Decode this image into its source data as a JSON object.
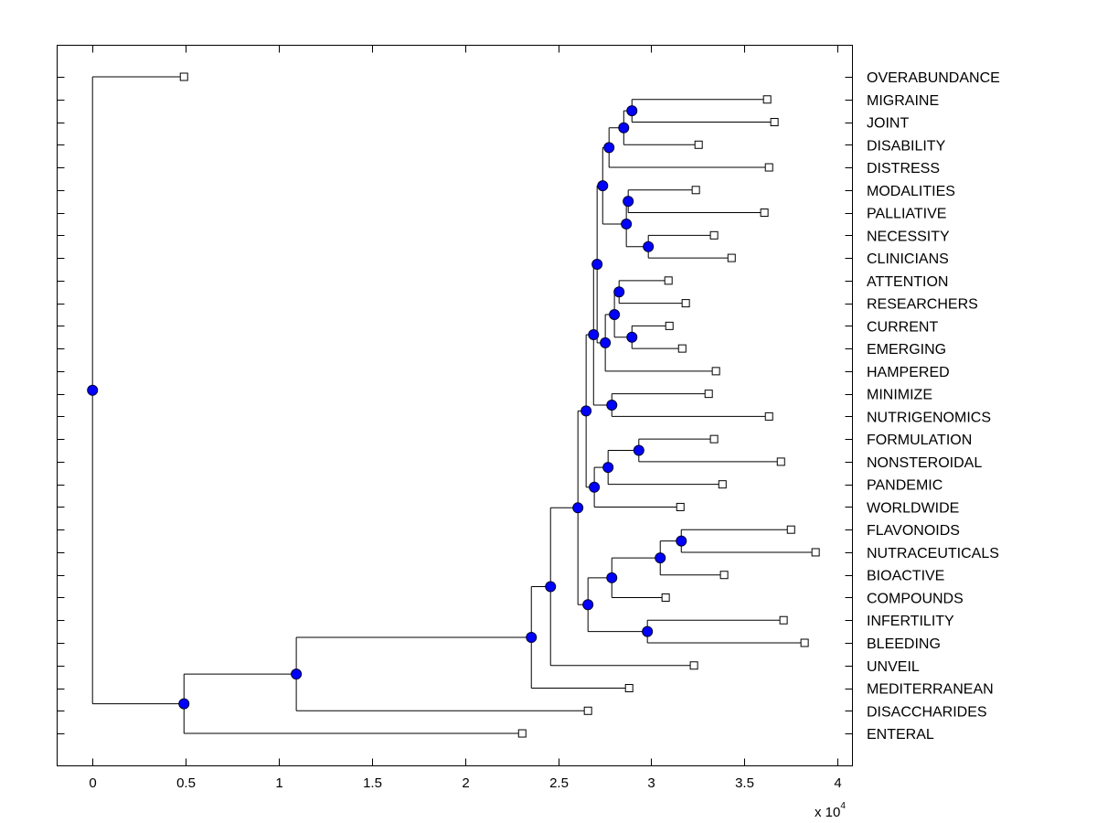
{
  "chart_data": {
    "type": "dendrogram",
    "orientation": "horizontal",
    "xlim": [
      -0.19,
      4.08
    ],
    "x_multiplier_label": "x 10",
    "x_multiplier_exponent": "4",
    "x_ticks": [
      0,
      0.5,
      1,
      1.5,
      2,
      2.5,
      3,
      3.5,
      4
    ],
    "x_tick_labels": [
      "0",
      "0.5",
      "1",
      "1.5",
      "2",
      "2.5",
      "3",
      "3.5",
      "4"
    ],
    "node_color": "#0000ff",
    "leaf_color": "#ffffff",
    "line_color": "#000000",
    "tree": {
      "h": 0,
      "c": [
        {
          "label": "OVERABUNDANCE",
          "h": 0.491
        },
        {
          "h": 0.491,
          "c": [
            {
              "h": 1.094,
              "c": [
                {
                  "h": 2.356,
                  "c": [
                    {
                      "h": 2.459,
                      "c": [
                        {
                          "h": 2.606,
                          "c": [
                            {
                              "h": 2.65,
                              "c": [
                                {
                                  "h": 2.69,
                                  "c": [
                                    {
                                      "h": 2.709,
                                      "c": [
                                        {
                                          "h": 2.739,
                                          "c": [
                                            {
                                              "h": 2.773,
                                              "c": [
                                                {
                                                  "h": 2.852,
                                                  "c": [
                                                    {
                                                      "h": 2.896,
                                                      "c": [
                                                        {
                                                          "label": "MIGRAINE",
                                                          "h": 3.622
                                                        },
                                                        {
                                                          "label": "JOINT",
                                                          "h": 3.661
                                                        }
                                                      ]
                                                    },
                                                    {
                                                      "label": "DISABILITY",
                                                      "h": 3.254
                                                    }
                                                  ]
                                                },
                                                {
                                                  "label": "DISTRESS",
                                                  "h": 3.632
                                                }
                                              ]
                                            },
                                            {
                                              "h": 2.866,
                                              "c": [
                                                {
                                                  "h": 2.876,
                                                  "c": [
                                                    {
                                                      "label": "MODALITIES",
                                                      "h": 3.239
                                                    },
                                                    {
                                                      "label": "PALLIATIVE",
                                                      "h": 3.607
                                                    }
                                                  ]
                                                },
                                                {
                                                  "h": 2.984,
                                                  "c": [
                                                    {
                                                      "label": "NECESSITY",
                                                      "h": 3.337
                                                    },
                                                    {
                                                      "label": "CLINICIANS",
                                                      "h": 3.431
                                                    }
                                                  ]
                                                }
                                              ]
                                            }
                                          ]
                                        },
                                        {
                                          "h": 2.753,
                                          "c": [
                                            {
                                              "h": 2.802,
                                              "c": [
                                                {
                                                  "h": 2.827,
                                                  "c": [
                                                    {
                                                      "label": "ATTENTION",
                                                      "h": 3.092
                                                    },
                                                    {
                                                      "label": "RESEARCHERS",
                                                      "h": 3.185
                                                    }
                                                  ]
                                                },
                                                {
                                                  "h": 2.896,
                                                  "c": [
                                                    {
                                                      "label": "CURRENT",
                                                      "h": 3.097
                                                    },
                                                    {
                                                      "label": "EMERGING",
                                                      "h": 3.166
                                                    }
                                                  ]
                                                }
                                              ]
                                            },
                                            {
                                              "label": "HAMPERED",
                                              "h": 3.347
                                            }
                                          ]
                                        }
                                      ]
                                    },
                                    {
                                      "h": 2.788,
                                      "c": [
                                        {
                                          "label": "MINIMIZE",
                                          "h": 3.308
                                        },
                                        {
                                          "label": "NUTRIGENOMICS",
                                          "h": 3.632
                                        }
                                      ]
                                    }
                                  ]
                                },
                                {
                                  "h": 2.694,
                                  "c": [
                                    {
                                      "h": 2.768,
                                      "c": [
                                        {
                                          "h": 2.933,
                                          "c": [
                                            {
                                              "label": "FORMULATION",
                                              "h": 3.337
                                            },
                                            {
                                              "label": "NONSTEROIDAL",
                                              "h": 3.696
                                            }
                                          ]
                                        },
                                        {
                                          "label": "PANDEMIC",
                                          "h": 3.382
                                        }
                                      ]
                                    },
                                    {
                                      "label": "WORLDWIDE",
                                      "h": 3.156
                                    }
                                  ]
                                }
                              ]
                            },
                            {
                              "h": 2.66,
                              "c": [
                                {
                                  "h": 2.788,
                                  "c": [
                                    {
                                      "h": 3.048,
                                      "c": [
                                        {
                                          "h": 3.161,
                                          "c": [
                                            {
                                              "label": "FLAVONOIDS",
                                              "h": 3.75
                                            },
                                            {
                                              "label": "NUTRACEUTICALS",
                                              "h": 3.882
                                            }
                                          ]
                                        },
                                        {
                                          "label": "BIOACTIVE",
                                          "h": 3.391
                                        }
                                      ]
                                    },
                                    {
                                      "label": "COMPOUNDS",
                                      "h": 3.077
                                    }
                                  ]
                                },
                                {
                                  "h": 2.979,
                                  "c": [
                                    {
                                      "label": "INFERTILITY",
                                      "h": 3.71
                                    },
                                    {
                                      "label": "BLEEDING",
                                      "h": 3.823
                                    }
                                  ]
                                }
                              ]
                            }
                          ]
                        },
                        {
                          "label": "UNVEIL",
                          "h": 3.229
                        }
                      ]
                    },
                    {
                      "label": "MEDITERRANEAN",
                      "h": 2.881
                    }
                  ]
                },
                {
                  "label": "DISACCHARIDES",
                  "h": 2.66
                }
              ]
            },
            {
              "label": "ENTERAL",
              "h": 2.307
            }
          ]
        }
      ]
    }
  }
}
